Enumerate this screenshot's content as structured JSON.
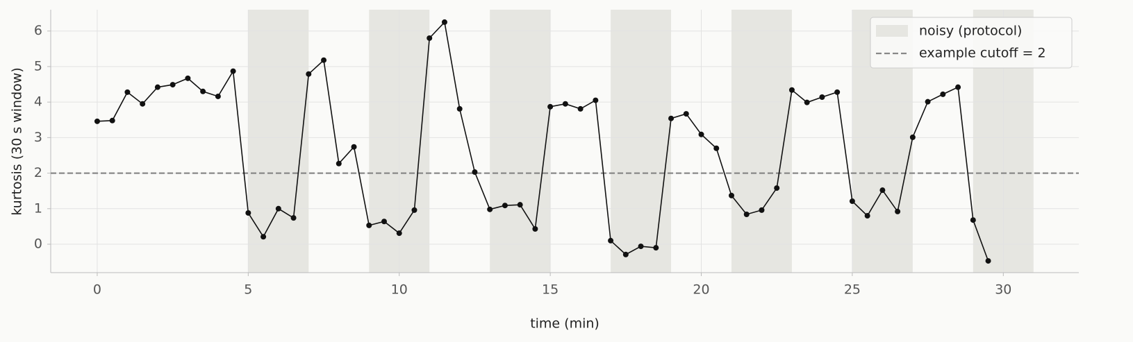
{
  "chart_data": {
    "type": "line",
    "xlabel": "time (min)",
    "ylabel": "kurtosis (30 s window)",
    "x": [
      0,
      0.5,
      1,
      1.5,
      2,
      2.5,
      3,
      3.5,
      4,
      4.5,
      5,
      5.5,
      6,
      6.5,
      7,
      7.5,
      8,
      8.5,
      9,
      9.5,
      10,
      10.5,
      11,
      11.5,
      12,
      12.5,
      13,
      13.5,
      14,
      14.5,
      15,
      15.5,
      16,
      16.5,
      17,
      17.5,
      18,
      18.5,
      19,
      19.5,
      20,
      20.5,
      21,
      21.5,
      22,
      22.5,
      23,
      23.5,
      24,
      24.5,
      25,
      25.5,
      26,
      26.5,
      27,
      27.5,
      28,
      28.5,
      29,
      29.5
    ],
    "series": [
      {
        "color": "#111111",
        "values": [
          3.46,
          3.48,
          4.28,
          3.95,
          4.42,
          4.49,
          4.67,
          4.3,
          4.16,
          4.87,
          0.88,
          0.21,
          1.0,
          0.74,
          4.79,
          5.18,
          2.27,
          2.74,
          0.53,
          0.64,
          0.31,
          0.96,
          5.8,
          6.25,
          3.81,
          2.03,
          0.98,
          1.09,
          1.11,
          0.43,
          3.87,
          3.95,
          3.81,
          4.05,
          0.1,
          -0.29,
          -0.06,
          -0.1,
          3.54,
          3.67,
          3.09,
          2.7,
          1.37,
          0.84,
          0.96,
          1.58,
          4.34,
          3.99,
          4.14,
          4.28,
          1.21,
          0.8,
          1.52,
          0.92,
          3.01,
          4.01,
          4.22,
          4.42,
          0.68,
          -0.47
        ]
      }
    ],
    "shaded_regions": {
      "name": "noisy (protocol)",
      "color": "#e6e6e1",
      "spans": [
        [
          5,
          7
        ],
        [
          9,
          11
        ],
        [
          13,
          15
        ],
        [
          17,
          19
        ],
        [
          21,
          23
        ],
        [
          25,
          27
        ],
        [
          29,
          31
        ]
      ]
    },
    "reference_line": {
      "name": "example cutoff = 2",
      "value": 2,
      "color": "#888888"
    },
    "xlim": [
      -1.54,
      32.5
    ],
    "ylim": [
      -0.8,
      6.6
    ],
    "xticks": [
      0,
      5,
      10,
      15,
      20,
      25,
      30
    ],
    "yticks": [
      0,
      1,
      2,
      3,
      4,
      5,
      6
    ],
    "grid": true,
    "legend_position": "upper right"
  }
}
